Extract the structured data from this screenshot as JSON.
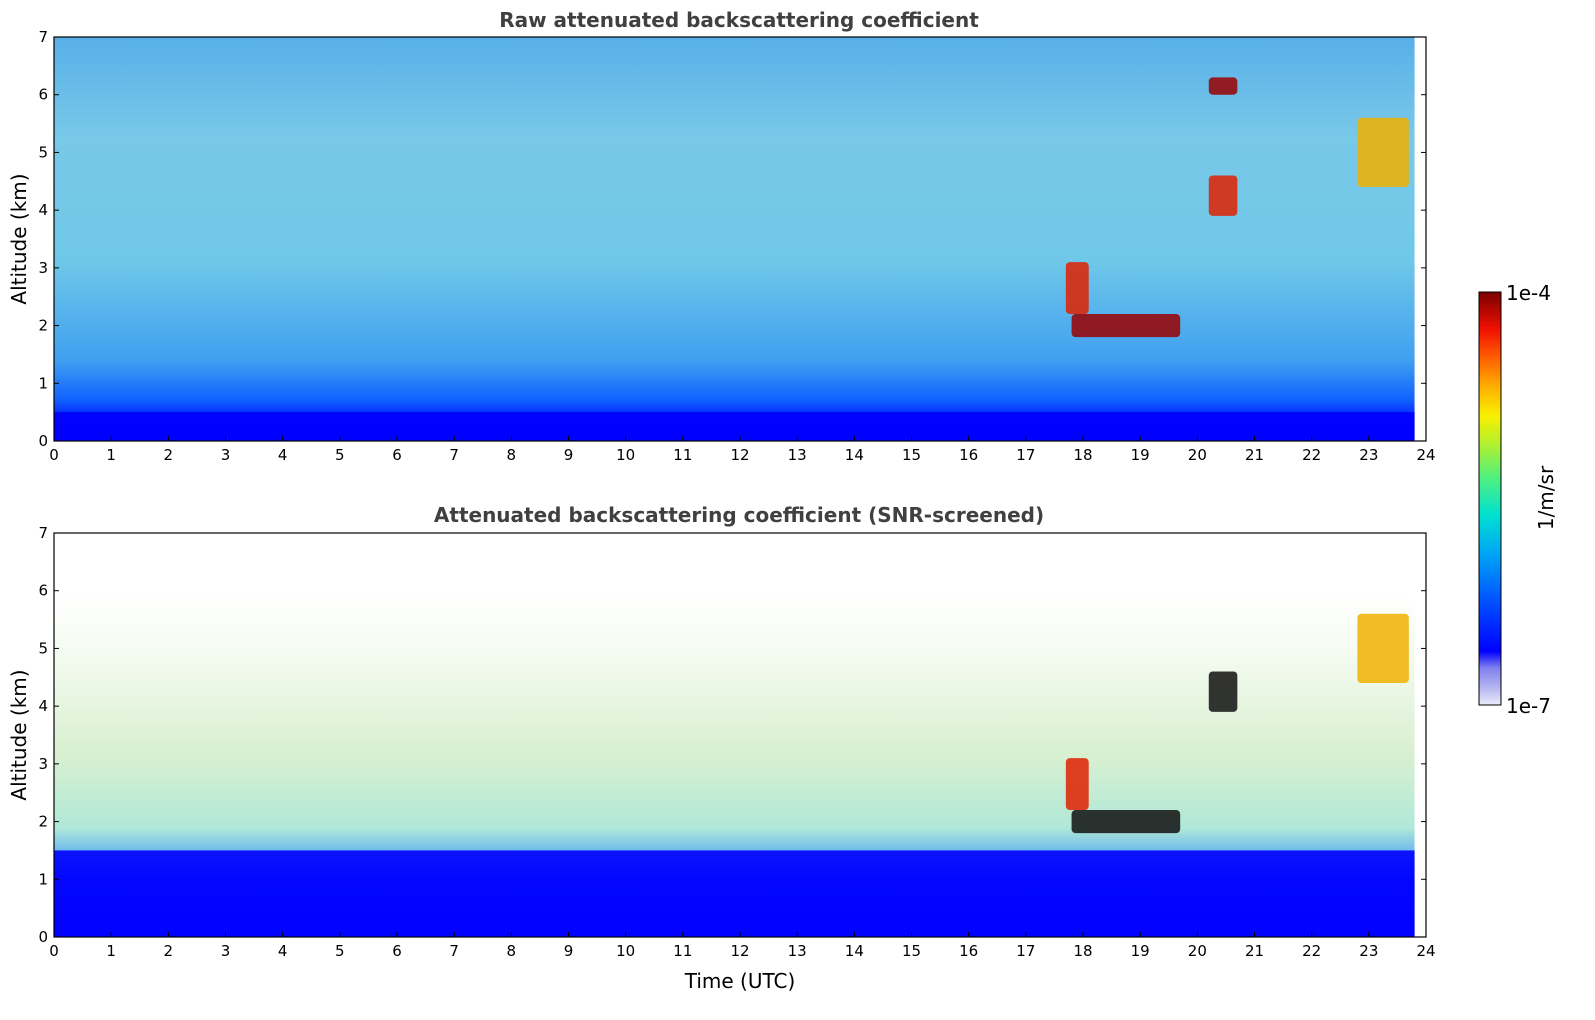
{
  "chart_data": [
    {
      "type": "heatmap",
      "title": "Raw attenuated backscattering coefficient",
      "xlabel": "",
      "ylabel": "Altitude (km)",
      "xlim": [
        0,
        24
      ],
      "ylim": [
        0,
        7
      ],
      "x_ticks": [
        "0",
        "1",
        "2",
        "3",
        "4",
        "5",
        "6",
        "7",
        "8",
        "9",
        "10",
        "11",
        "12",
        "13",
        "14",
        "15",
        "16",
        "17",
        "18",
        "19",
        "20",
        "21",
        "22",
        "23",
        "24"
      ],
      "y_ticks": [
        "0",
        "1",
        "2",
        "3",
        "4",
        "5",
        "6",
        "7"
      ],
      "time_coverage_hours": [
        0,
        23.8
      ],
      "layers": [
        {
          "feature": "surface / boundary layer",
          "time_range": [
            0,
            23.8
          ],
          "altitude_range_km": [
            0,
            0.5
          ],
          "level": "low (blue)"
        },
        {
          "feature": "aerosol layer",
          "time_range": [
            17.8,
            19.7
          ],
          "altitude_range_km": [
            1.8,
            2.2
          ],
          "level": "high (dark red)"
        },
        {
          "feature": "aerosol plume",
          "time_range": [
            17.7,
            18.1
          ],
          "altitude_range_km": [
            2.2,
            3.1
          ],
          "level": "high (red)"
        },
        {
          "feature": "cloud",
          "time_range": [
            20.2,
            20.7
          ],
          "altitude_range_km": [
            3.9,
            4.6
          ],
          "level": "high (red)"
        },
        {
          "feature": "cloud",
          "time_range": [
            22.8,
            23.7
          ],
          "altitude_range_km": [
            4.4,
            5.6
          ],
          "level": "medium (yellow-orange)"
        },
        {
          "feature": "cloud",
          "time_range": [
            20.2,
            20.7
          ],
          "altitude_range_km": [
            6.0,
            6.3
          ],
          "level": "high (dark red)"
        }
      ]
    },
    {
      "type": "heatmap",
      "title": "Attenuated backscattering coefficient (SNR-screened)",
      "xlabel": "Time (UTC)",
      "ylabel": "Altitude (km)",
      "xlim": [
        0,
        24
      ],
      "ylim": [
        0,
        7
      ],
      "x_ticks": [
        "0",
        "1",
        "2",
        "3",
        "4",
        "5",
        "6",
        "7",
        "8",
        "9",
        "10",
        "11",
        "12",
        "13",
        "14",
        "15",
        "16",
        "17",
        "18",
        "19",
        "20",
        "21",
        "22",
        "23",
        "24"
      ],
      "y_ticks": [
        "0",
        "1",
        "2",
        "3",
        "4",
        "5",
        "6",
        "7"
      ],
      "time_coverage_hours": [
        0,
        23.8
      ],
      "layers": [
        {
          "feature": "boundary layer",
          "time_range": [
            0,
            23.8
          ],
          "altitude_range_km": [
            0,
            1.5
          ],
          "level": "low (blue)"
        },
        {
          "feature": "aerosol layer",
          "time_range": [
            17.8,
            19.7
          ],
          "altitude_range_km": [
            1.8,
            2.2
          ],
          "level": "saturated (black)"
        },
        {
          "feature": "aerosol plume",
          "time_range": [
            17.7,
            18.1
          ],
          "altitude_range_km": [
            2.2,
            3.1
          ],
          "level": "high (red)"
        },
        {
          "feature": "cloud",
          "time_range": [
            20.2,
            20.7
          ],
          "altitude_range_km": [
            3.9,
            4.6
          ],
          "level": "saturated (black)"
        },
        {
          "feature": "cloud",
          "time_range": [
            22.8,
            23.7
          ],
          "altitude_range_km": [
            4.4,
            5.6
          ],
          "level": "medium (yellow-orange)"
        }
      ]
    }
  ],
  "colorbar": {
    "label": "1/m/sr",
    "max_label": "1e-4",
    "min_label": "1e-7",
    "scale": "log",
    "range": [
      1e-07,
      0.0001
    ],
    "colormap": [
      "#e8e8f8",
      "#c0c0f0",
      "#9090ee",
      "#0000ff",
      "#0060ff",
      "#00b0f0",
      "#00e0d0",
      "#50f080",
      "#b0f030",
      "#f8f000",
      "#ffb000",
      "#ff6000",
      "#f01000",
      "#c00000",
      "#800000"
    ]
  }
}
